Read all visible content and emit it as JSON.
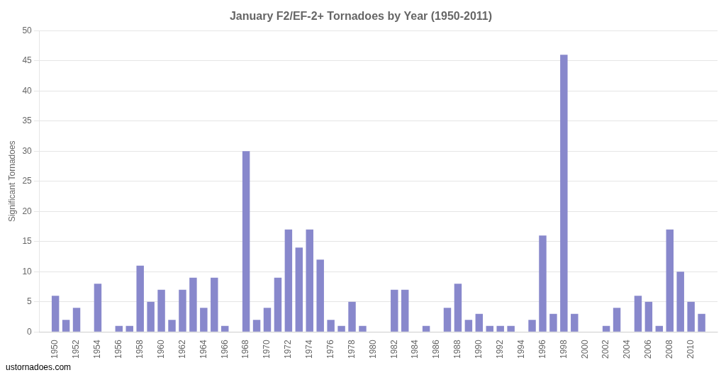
{
  "chart_data": {
    "type": "bar",
    "title": "January F2/EF-2+ Tornadoes by Year (1950-2011)",
    "ylabel": "Significant Tornadoes",
    "x": [
      1950,
      1951,
      1952,
      1953,
      1954,
      1955,
      1956,
      1957,
      1958,
      1959,
      1960,
      1961,
      1962,
      1963,
      1964,
      1965,
      1966,
      1967,
      1968,
      1969,
      1970,
      1971,
      1972,
      1973,
      1974,
      1975,
      1976,
      1977,
      1978,
      1979,
      1980,
      1981,
      1982,
      1983,
      1984,
      1985,
      1986,
      1987,
      1988,
      1989,
      1990,
      1991,
      1992,
      1993,
      1994,
      1995,
      1996,
      1997,
      1998,
      1999,
      2000,
      2001,
      2002,
      2003,
      2004,
      2005,
      2006,
      2007,
      2008,
      2009,
      2010,
      2011
    ],
    "values": [
      6,
      2,
      4,
      0,
      8,
      0,
      1,
      1,
      11,
      5,
      7,
      2,
      7,
      9,
      4,
      9,
      1,
      0,
      30,
      2,
      4,
      9,
      17,
      14,
      17,
      12,
      2,
      1,
      5,
      1,
      0,
      0,
      7,
      7,
      0,
      1,
      0,
      4,
      8,
      2,
      3,
      1,
      1,
      1,
      0,
      2,
      16,
      3,
      46,
      3,
      0,
      0,
      1,
      4,
      0,
      6,
      5,
      1,
      17,
      10,
      5,
      3
    ],
    "color": "#8888cc",
    "xlim": [
      1948.5,
      2012.5
    ],
    "xticks": [
      1950,
      1952,
      1954,
      1956,
      1958,
      1960,
      1962,
      1964,
      1966,
      1968,
      1970,
      1972,
      1974,
      1976,
      1978,
      1980,
      1982,
      1984,
      1986,
      1988,
      1990,
      1992,
      1994,
      1996,
      1998,
      2000,
      2002,
      2004,
      2006,
      2008,
      2010
    ],
    "ylim": [
      0,
      50
    ],
    "yticks": [
      0,
      5,
      10,
      15,
      20,
      25,
      30,
      35,
      40,
      45,
      50
    ],
    "grid": "y",
    "annotations": [
      "ustornadoes.com"
    ]
  }
}
